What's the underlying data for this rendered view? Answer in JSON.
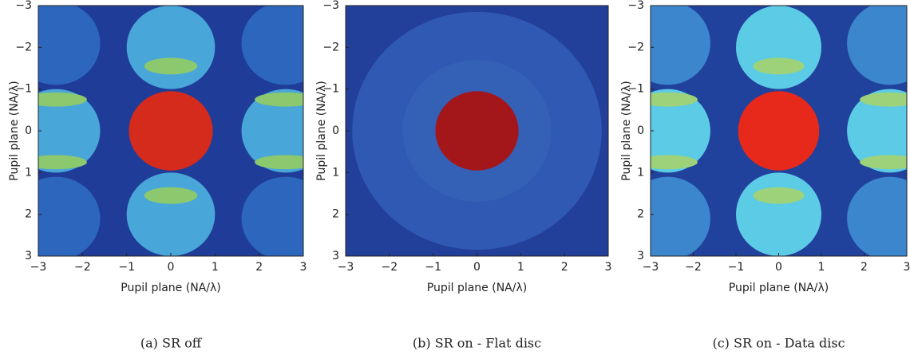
{
  "chart_data": [
    {
      "type": "heatmap",
      "caption": "(a) SR off",
      "xlabel": "Pupil plane (NA/λ)",
      "ylabel": "Pupil plane (NA/λ)",
      "xlim": [
        -3,
        3
      ],
      "ylim": [
        -3,
        3
      ],
      "y_inverted": true,
      "xticks": [
        {
          "value": -3,
          "label": "−3"
        },
        {
          "value": -2,
          "label": "−2"
        },
        {
          "value": -1,
          "label": "−1"
        },
        0,
        1,
        2,
        3
      ],
      "yticks": [
        {
          "value": -3,
          "label": "−3"
        },
        {
          "value": -2,
          "label": "−2"
        },
        {
          "value": -1,
          "label": "−1"
        },
        0,
        1,
        2,
        3
      ]
    },
    {
      "type": "heatmap",
      "caption": "(b) SR on - Flat disc",
      "xlabel": "Pupil plane (NA/λ)",
      "ylabel": "Pupil plane (NA/λ)",
      "xlim": [
        -3,
        3
      ],
      "ylim": [
        -3,
        3
      ],
      "y_inverted": true,
      "xticks": [
        {
          "value": -3,
          "label": "−3"
        },
        {
          "value": -2,
          "label": "−2"
        },
        {
          "value": -1,
          "label": "−1"
        },
        0,
        1,
        2,
        3
      ],
      "yticks": [
        {
          "value": -3,
          "label": "−3"
        },
        {
          "value": -2,
          "label": "−2"
        },
        {
          "value": -1,
          "label": "−1"
        },
        0,
        1,
        2,
        3
      ]
    },
    {
      "type": "heatmap",
      "caption": "(c) SR on - Data disc",
      "xlabel": "Pupil plane (NA/λ)",
      "ylabel": "Pupil plane (NA/λ)",
      "xlim": [
        -3,
        3
      ],
      "ylim": [
        -3,
        3
      ],
      "y_inverted": true,
      "xticks": [
        {
          "value": -3,
          "label": "−3"
        },
        {
          "value": -2,
          "label": "−2"
        },
        {
          "value": -1,
          "label": "−1"
        },
        0,
        1,
        2,
        3
      ],
      "yticks": [
        {
          "value": -3,
          "label": "−3"
        },
        {
          "value": -2,
          "label": "−2"
        },
        {
          "value": -1,
          "label": "−1"
        },
        0,
        1,
        2,
        3
      ]
    }
  ]
}
